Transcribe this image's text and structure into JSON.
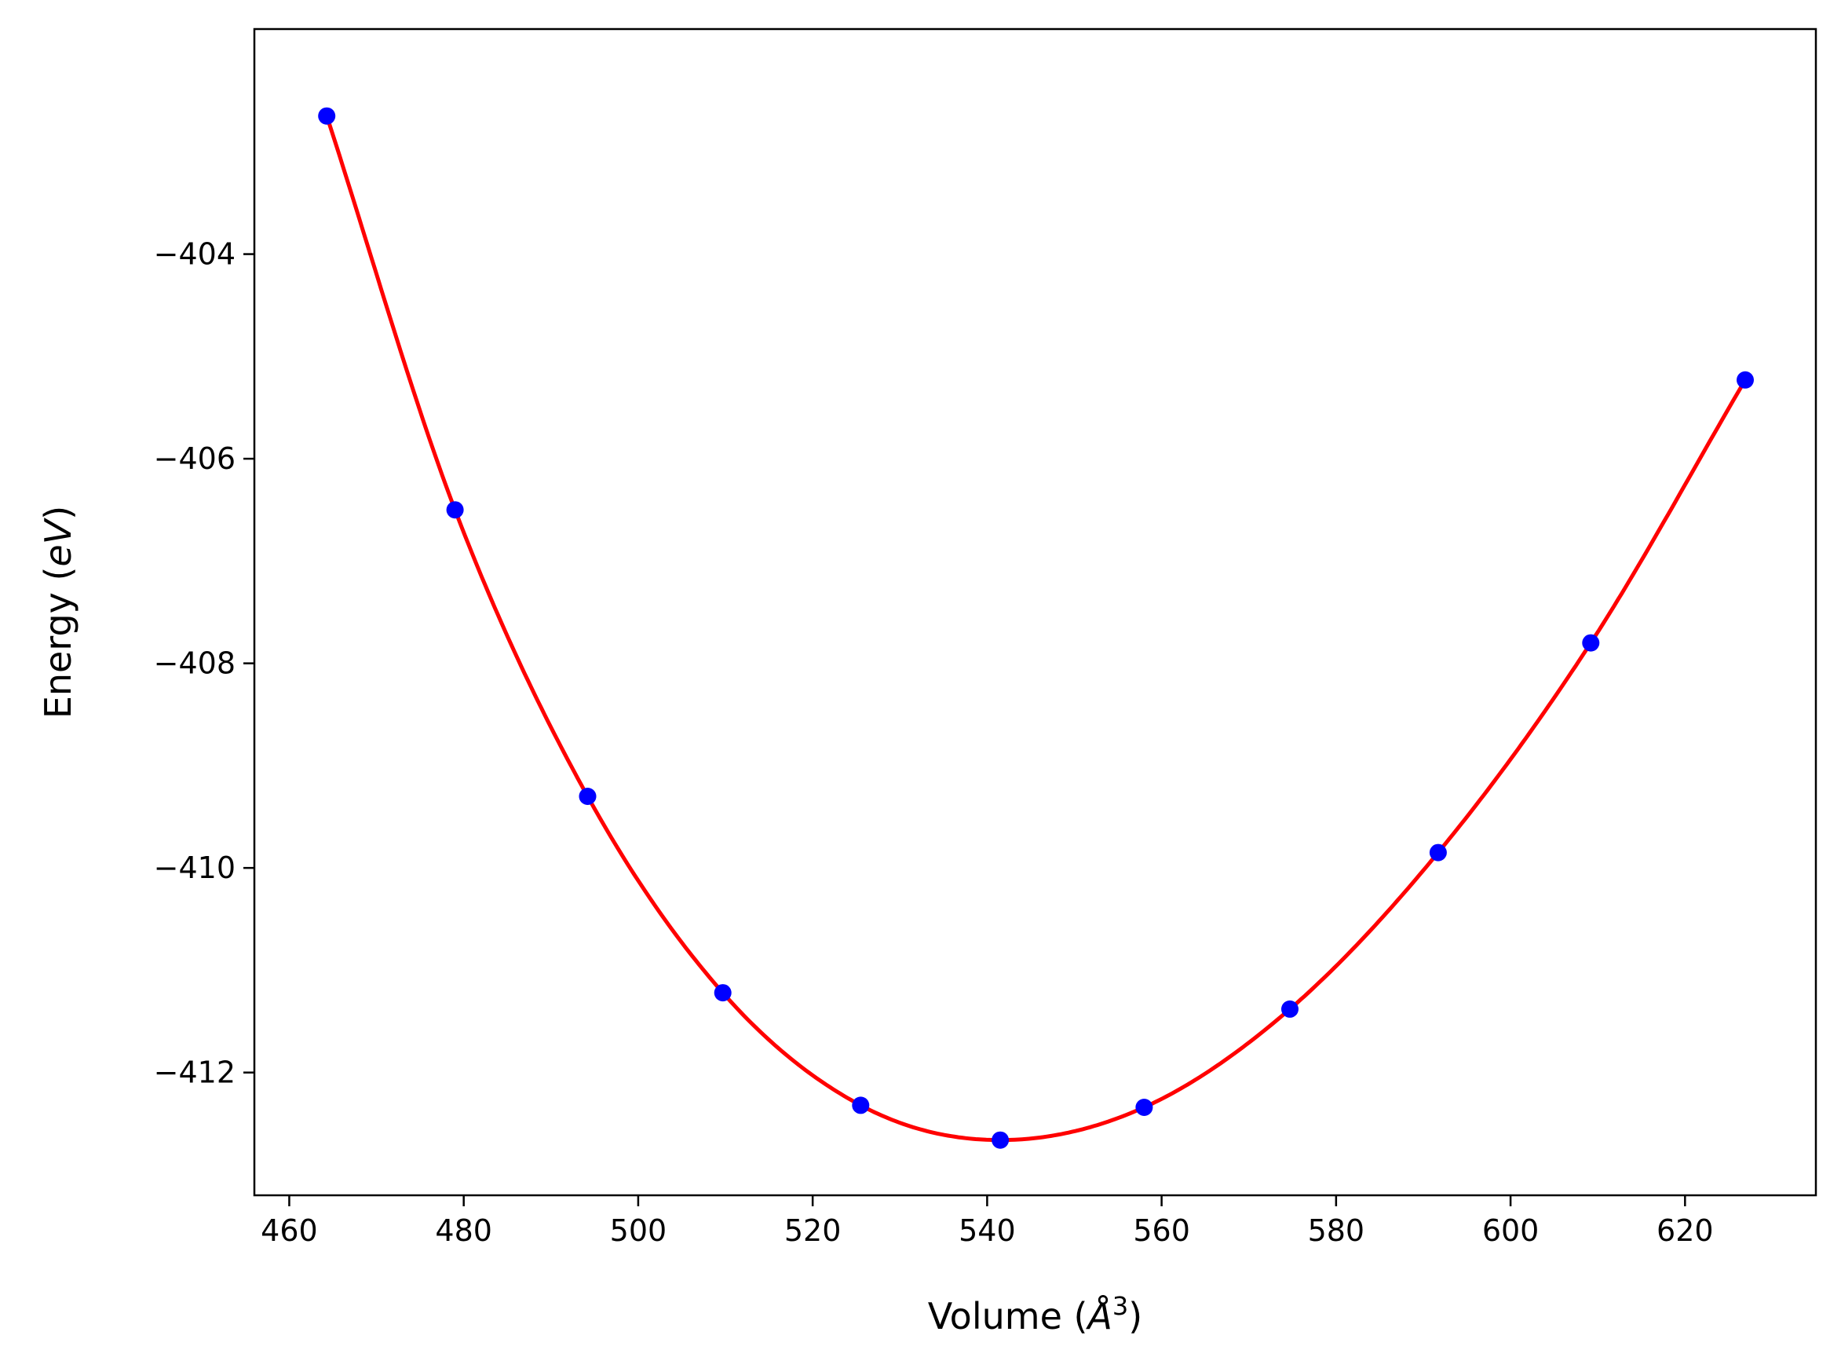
{
  "chart_data": {
    "type": "line",
    "title": "",
    "xlabel": "Volume ($\\AA^3$)",
    "ylabel": "Energy ($eV$)",
    "xlabel_parts": {
      "prefix": "Volume (",
      "symbol": "Å",
      "sup": "3",
      "suffix": ")"
    },
    "ylabel_parts": {
      "prefix": "Energy (",
      "unit": "eV",
      "suffix": ")"
    },
    "xlim": [
      456,
      635
    ],
    "ylim": [
      -413.2,
      -401.8
    ],
    "x_ticks": [
      460,
      480,
      500,
      520,
      540,
      560,
      580,
      600,
      620
    ],
    "y_ticks": [
      -404,
      -406,
      -408,
      -410,
      -412
    ],
    "x_tick_labels": [
      "460",
      "480",
      "500",
      "520",
      "540",
      "560",
      "580",
      "600",
      "620"
    ],
    "y_tick_labels": [
      "−404",
      "−406",
      "−408",
      "−410",
      "−412"
    ],
    "grid": false,
    "legend": "none",
    "series": [
      {
        "kind": "scatter",
        "color": "#0000ff",
        "x": [
          464.3,
          479.0,
          494.2,
          509.7,
          525.5,
          541.5,
          558.0,
          574.7,
          591.7,
          609.2,
          626.9
        ],
        "y": [
          -402.65,
          -406.5,
          -409.3,
          -411.22,
          -412.32,
          -412.66,
          -412.34,
          -411.38,
          -409.85,
          -407.8,
          -405.23
        ]
      },
      {
        "kind": "line",
        "color": "#ff0000",
        "x": [
          464.3,
          479.0,
          494.2,
          509.7,
          525.5,
          541.5,
          558.0,
          574.7,
          591.7,
          609.2,
          626.9
        ],
        "y": [
          -402.65,
          -406.5,
          -409.3,
          -411.22,
          -412.32,
          -412.66,
          -412.34,
          -411.38,
          -409.85,
          -407.8,
          -405.23
        ]
      }
    ]
  }
}
